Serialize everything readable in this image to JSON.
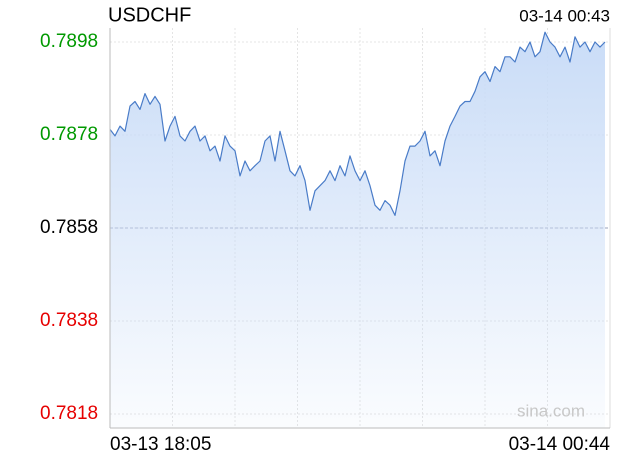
{
  "chart_data": {
    "type": "line",
    "title": "USDCHF",
    "timestamp": "03-14 00:43",
    "watermark": "sina.com",
    "categories": [
      "03-13 18:05",
      null,
      null,
      null,
      null,
      null,
      null,
      null,
      null,
      null,
      null,
      null,
      null,
      null,
      null,
      null,
      null,
      null,
      null,
      null,
      null,
      null,
      null,
      null,
      null,
      null,
      null,
      null,
      null,
      null,
      null,
      null,
      null,
      null,
      null,
      null,
      null,
      null,
      null,
      null,
      null,
      null,
      null,
      null,
      null,
      null,
      null,
      null,
      null,
      null,
      null,
      null,
      null,
      null,
      null,
      null,
      null,
      null,
      null,
      null,
      null,
      null,
      null,
      null,
      null,
      null,
      null,
      null,
      null,
      null,
      null,
      null,
      null,
      null,
      null,
      null,
      null,
      null,
      null,
      null,
      null,
      null,
      null,
      null,
      null,
      null,
      null,
      null,
      null,
      null,
      null,
      null,
      null,
      null,
      null,
      null,
      null,
      null,
      null,
      "03-14 00:44"
    ],
    "series": [
      {
        "name": "USDCHF",
        "color": "#4a7cc8",
        "fill": "#c9dcf7",
        "values": [
          0.78792,
          0.78778,
          0.78799,
          0.78788,
          0.78842,
          0.78852,
          0.78835,
          0.78869,
          0.78846,
          0.78863,
          0.78846,
          0.78767,
          0.78799,
          0.7882,
          0.78778,
          0.78767,
          0.78788,
          0.78799,
          0.78767,
          0.78778,
          0.78746,
          0.78756,
          0.78724,
          0.78778,
          0.78756,
          0.78746,
          0.78692,
          0.78724,
          0.78703,
          0.78714,
          0.78724,
          0.78767,
          0.78778,
          0.78724,
          0.78788,
          0.78746,
          0.78703,
          0.78692,
          0.78714,
          0.78682,
          0.78618,
          0.7866,
          0.78671,
          0.78682,
          0.78703,
          0.78682,
          0.78714,
          0.78692,
          0.78735,
          0.78703,
          0.78682,
          0.78703,
          0.78671,
          0.78629,
          0.78618,
          0.78639,
          0.78629,
          0.78607,
          0.7866,
          0.78724,
          0.78756,
          0.78756,
          0.78767,
          0.78788,
          0.78735,
          0.78746,
          0.78714,
          0.78767,
          0.78799,
          0.7882,
          0.78842,
          0.78852,
          0.78852,
          0.78874,
          0.78905,
          0.78916,
          0.78895,
          0.78927,
          0.78916,
          0.78948,
          0.78948,
          0.78937,
          0.78969,
          0.78959,
          0.7898,
          0.78948,
          0.78959,
          0.79001,
          0.7898,
          0.78969,
          0.78948,
          0.78969,
          0.78937,
          0.78991,
          0.78969,
          0.7898,
          0.78959,
          0.7898,
          0.78969,
          0.7898
        ]
      }
    ],
    "ylim": [
      0.7815,
      0.7901
    ],
    "yticks": [
      0.7898,
      0.7878,
      0.7858,
      0.7838,
      0.7818
    ],
    "reference_line": 0.7858,
    "up_color": "#009900",
    "down_color": "#e60000",
    "flat_color": "#000000",
    "grid": true
  }
}
